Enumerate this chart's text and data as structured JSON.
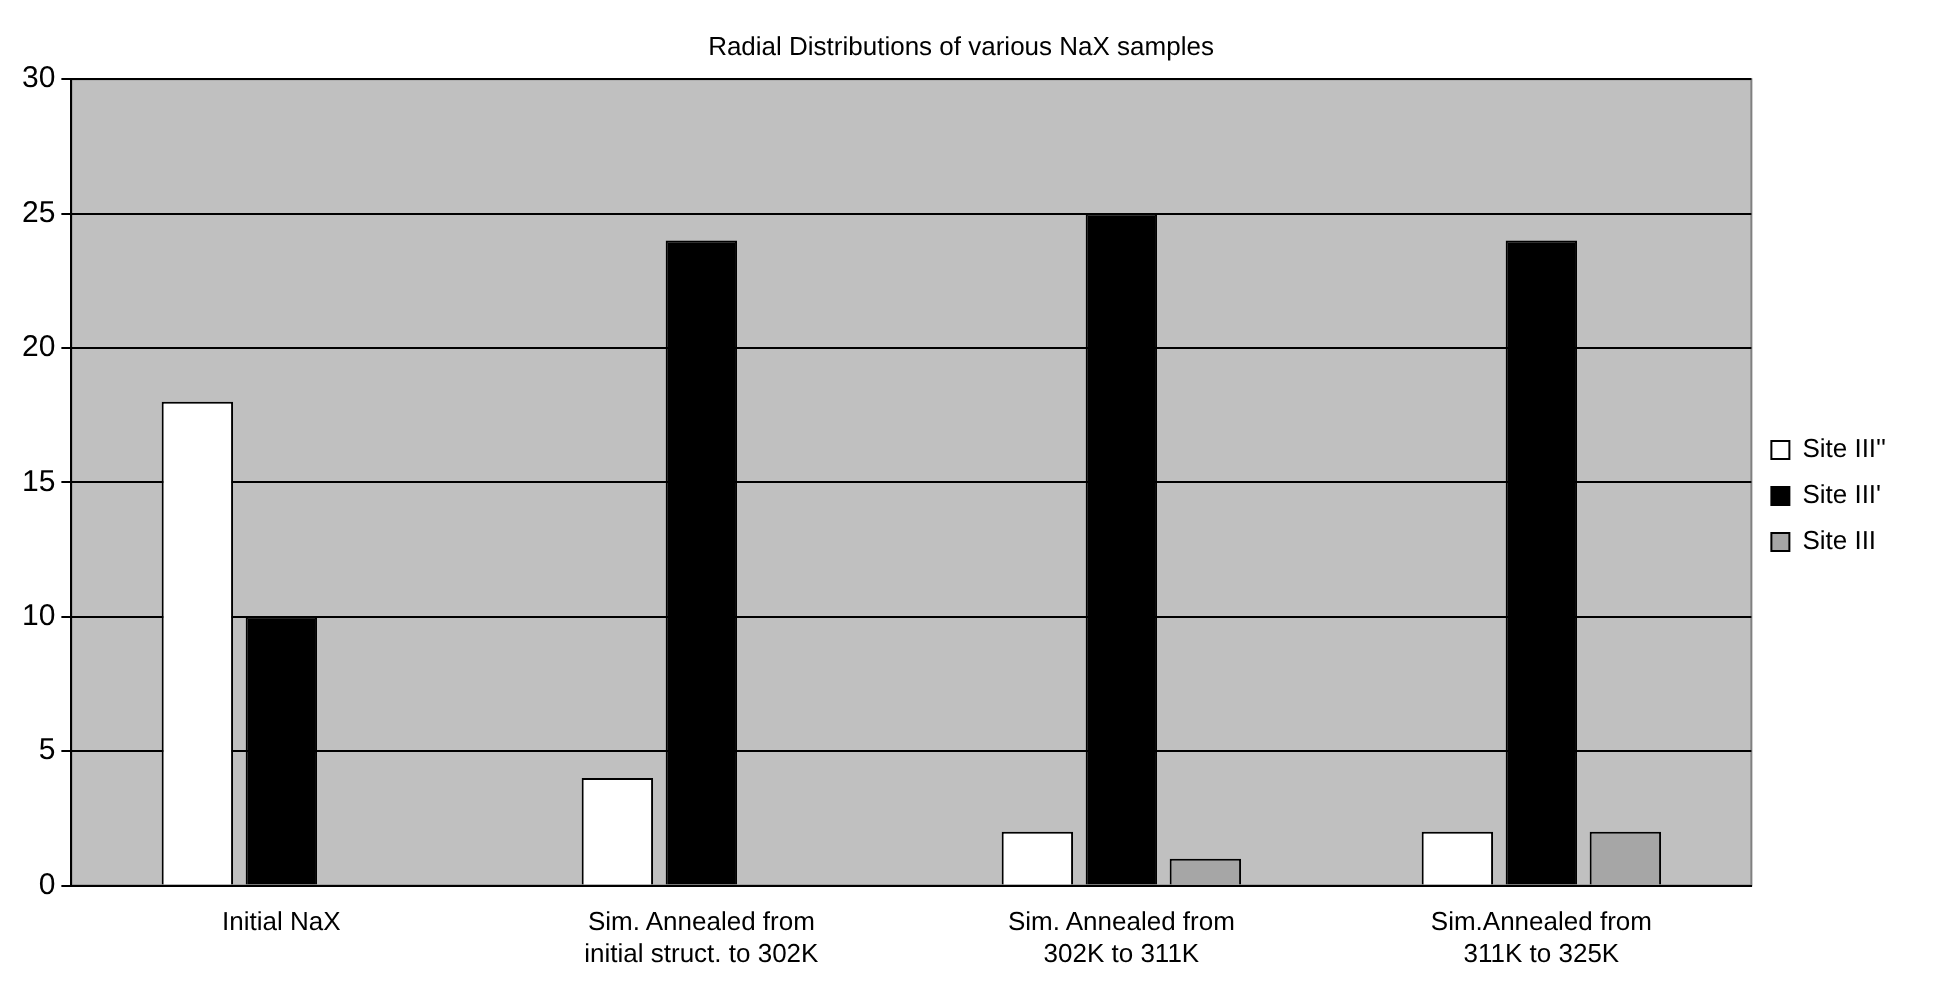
{
  "chart_data": {
    "type": "bar",
    "title": "Radial Distributions of various NaX samples",
    "categories": [
      "Initial NaX",
      [
        "Sim. Annealed from",
        "initial struct. to 302K"
      ],
      [
        "Sim. Annealed from",
        "302K to 311K"
      ],
      [
        "Sim.Annealed from",
        "311K to 325K"
      ]
    ],
    "series": [
      {
        "name": "Site III''",
        "color": "#ffffff",
        "values": [
          18,
          4,
          2,
          2
        ]
      },
      {
        "name": "Site III'",
        "color": "#000000",
        "values": [
          10,
          24,
          25,
          24
        ]
      },
      {
        "name": "Site III",
        "color": "#a6a6a6",
        "values": [
          null,
          null,
          1,
          2
        ]
      }
    ],
    "ylim": [
      0,
      30
    ],
    "yticks": [
      0,
      5,
      10,
      15,
      20,
      25,
      30
    ],
    "grid": "y",
    "legend": "right"
  }
}
